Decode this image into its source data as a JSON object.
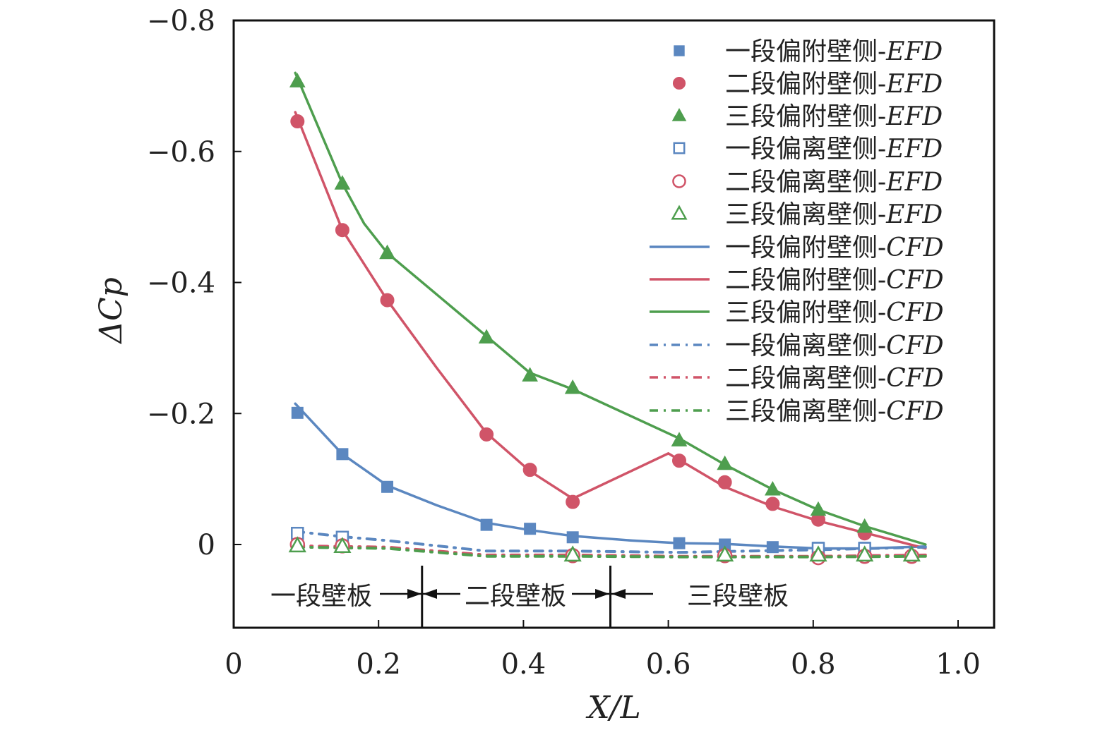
{
  "chart_data": {
    "type": "line",
    "xlabel": "X/L",
    "ylabel": "ΔCp",
    "xlim": [
      0,
      1.05
    ],
    "ylim": [
      0.127,
      -0.8
    ],
    "y_inverted": true,
    "grid": false,
    "legend_position": "top-right",
    "xticks": [
      "0",
      "0.2",
      "0.4",
      "0.6",
      "0.8",
      "1.0"
    ],
    "xtick_values": [
      0,
      0.2,
      0.4,
      0.6,
      0.8,
      1.0
    ],
    "yticks": [
      "−0.8",
      "−0.6",
      "−0.4",
      "−0.2",
      "0"
    ],
    "ytick_values": [
      -0.8,
      -0.6,
      -0.4,
      -0.2,
      0
    ],
    "colors": {
      "blue": "#5b87c0",
      "red": "#d05468",
      "green": "#4e9e4e"
    },
    "series": [
      {
        "name": "一段偏附壁侧-EFD",
        "kind": "marker",
        "marker": "square-filled",
        "color": "#5b87c0",
        "x": [
          0.088,
          0.15,
          0.212,
          0.349,
          0.409,
          0.468,
          0.615,
          0.678,
          0.744,
          0.807,
          0.871
        ],
        "y": [
          -0.201,
          -0.138,
          -0.088,
          -0.03,
          -0.024,
          -0.011,
          -0.002,
          0.0,
          0.004,
          0.005,
          0.005
        ]
      },
      {
        "name": "二段偏附壁侧-EFD",
        "kind": "marker",
        "marker": "circle-filled",
        "color": "#d05468",
        "x": [
          0.088,
          0.15,
          0.212,
          0.349,
          0.409,
          0.468,
          0.615,
          0.678,
          0.744,
          0.807,
          0.871
        ],
        "y": [
          -0.646,
          -0.48,
          -0.373,
          -0.168,
          -0.114,
          -0.065,
          -0.128,
          -0.095,
          -0.062,
          -0.038,
          -0.017
        ]
      },
      {
        "name": "三段偏附壁侧-EFD",
        "kind": "marker",
        "marker": "triangle-filled",
        "color": "#4e9e4e",
        "x": [
          0.088,
          0.15,
          0.212,
          0.349,
          0.409,
          0.468,
          0.615,
          0.678,
          0.744,
          0.807,
          0.871
        ],
        "y": [
          -0.707,
          -0.551,
          -0.445,
          -0.316,
          -0.258,
          -0.239,
          -0.159,
          -0.123,
          -0.084,
          -0.053,
          -0.027
        ]
      },
      {
        "name": "一段偏离壁侧-EFD",
        "kind": "marker",
        "marker": "square-open",
        "color": "#5b87c0",
        "x": [
          0.088,
          0.15,
          0.807,
          0.871
        ],
        "y": [
          -0.017,
          -0.011,
          0.006,
          0.006
        ]
      },
      {
        "name": "二段偏离壁侧-EFD",
        "kind": "marker",
        "marker": "circle-open",
        "color": "#d05468",
        "x": [
          0.088,
          0.15,
          0.468,
          0.678,
          0.807,
          0.871,
          0.936
        ],
        "y": [
          0.0,
          0.002,
          0.017,
          0.017,
          0.02,
          0.018,
          0.018
        ]
      },
      {
        "name": "三段偏离壁侧-EFD",
        "kind": "marker",
        "marker": "triangle-open",
        "color": "#4e9e4e",
        "x": [
          0.088,
          0.15,
          0.468,
          0.678,
          0.807,
          0.871,
          0.936
        ],
        "y": [
          0.002,
          0.003,
          0.016,
          0.016,
          0.016,
          0.016,
          0.016
        ]
      },
      {
        "name": "一段偏附壁侧-CFD",
        "kind": "line",
        "dash": "solid",
        "color": "#5b87c0",
        "x": [
          0.085,
          0.15,
          0.212,
          0.28,
          0.349,
          0.409,
          0.468,
          0.55,
          0.615,
          0.678,
          0.744,
          0.807,
          0.871,
          0.955
        ],
        "y": [
          -0.215,
          -0.138,
          -0.09,
          -0.06,
          -0.033,
          -0.022,
          -0.013,
          -0.006,
          -0.002,
          -0.001,
          0.003,
          0.006,
          0.006,
          0.003
        ]
      },
      {
        "name": "二段偏附壁侧-CFD",
        "kind": "line",
        "dash": "solid",
        "color": "#d05468",
        "x": [
          0.085,
          0.15,
          0.212,
          0.28,
          0.349,
          0.409,
          0.468,
          0.6,
          0.678,
          0.744,
          0.807,
          0.871,
          0.955
        ],
        "y": [
          -0.66,
          -0.48,
          -0.373,
          -0.27,
          -0.17,
          -0.112,
          -0.07,
          -0.139,
          -0.088,
          -0.058,
          -0.036,
          -0.018,
          0.006
        ]
      },
      {
        "name": "三段偏附壁侧-CFD",
        "kind": "line",
        "dash": "solid",
        "color": "#4e9e4e",
        "x": [
          0.085,
          0.15,
          0.18,
          0.212,
          0.349,
          0.409,
          0.468,
          0.615,
          0.678,
          0.744,
          0.807,
          0.871,
          0.955
        ],
        "y": [
          -0.72,
          -0.551,
          -0.49,
          -0.445,
          -0.318,
          -0.262,
          -0.237,
          -0.162,
          -0.122,
          -0.084,
          -0.053,
          -0.028,
          0.0
        ]
      },
      {
        "name": "一段偏离壁侧-CFD",
        "kind": "line",
        "dash": "dashdot",
        "color": "#5b87c0",
        "x": [
          0.085,
          0.15,
          0.212,
          0.349,
          0.468,
          0.615,
          0.807,
          0.955
        ],
        "y": [
          -0.02,
          -0.012,
          -0.006,
          0.01,
          0.01,
          0.012,
          0.008,
          0.004
        ]
      },
      {
        "name": "二段偏离壁侧-CFD",
        "kind": "line",
        "dash": "dashdot",
        "color": "#d05468",
        "x": [
          0.085,
          0.212,
          0.349,
          0.468,
          0.615,
          0.807,
          0.955
        ],
        "y": [
          0.002,
          0.004,
          0.016,
          0.016,
          0.018,
          0.018,
          0.016
        ]
      },
      {
        "name": "三段偏离壁侧-CFD",
        "kind": "line",
        "dash": "dashdot",
        "color": "#4e9e4e",
        "x": [
          0.085,
          0.212,
          0.349,
          0.468,
          0.615,
          0.807,
          0.955
        ],
        "y": [
          0.004,
          0.006,
          0.018,
          0.018,
          0.019,
          0.019,
          0.018
        ]
      }
    ],
    "annotations": {
      "segments": [
        "一段壁板",
        "二段壁板",
        "三段壁板"
      ],
      "boundaries": [
        0.26,
        0.52
      ]
    }
  }
}
